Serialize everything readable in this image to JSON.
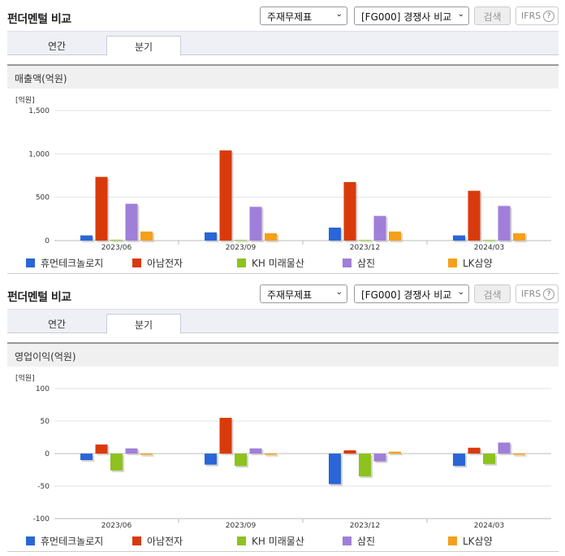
{
  "panels": [
    {
      "header": {
        "title": "펀더멘털 비교",
        "select_statement": "주재무제표",
        "select_compare": "[FG000] 경쟁사 비교",
        "search_label": "검색",
        "ifrs_label": "IFRS",
        "help_label": "?"
      },
      "tabs": [
        "연간",
        "분기"
      ],
      "active_tab": "분기",
      "subtitle": "매출액(억원)",
      "chart_data": {
        "type": "bar",
        "unit_label": "[억원]",
        "categories": [
          "2023/06",
          "2023/09",
          "2023/12",
          "2024/03"
        ],
        "ylim": [
          0,
          1500
        ],
        "yticks": [
          0,
          500,
          1000,
          1500
        ],
        "ytick_labels": [
          "0",
          "500",
          "1,000",
          "1,500"
        ],
        "grid": true,
        "legend_position": "bottom",
        "series": [
          {
            "name": "휴먼테크놀로지",
            "color": "#2a66d6",
            "values": [
              60,
              95,
              150,
              60
            ]
          },
          {
            "name": "아남전자",
            "color": "#d93a0c",
            "values": [
              735,
              1040,
              675,
              575
            ]
          },
          {
            "name": "KH 미래물산",
            "color": "#8dc21f",
            "values": [
              10,
              8,
              8,
              8
            ]
          },
          {
            "name": "삼진",
            "color": "#a07fd8",
            "values": [
              425,
              390,
              285,
              400
            ]
          },
          {
            "name": "LK삼양",
            "color": "#f5a01a",
            "values": [
              105,
              85,
              105,
              85
            ]
          }
        ]
      }
    },
    {
      "header": {
        "title": "펀더멘털 비교",
        "select_statement": "주재무제표",
        "select_compare": "[FG000] 경쟁사 비교",
        "search_label": "검색",
        "ifrs_label": "IFRS",
        "help_label": "?"
      },
      "tabs": [
        "연간",
        "분기"
      ],
      "active_tab": "분기",
      "subtitle": "영업이익(억원)",
      "chart_data": {
        "type": "bar",
        "unit_label": "[억원]",
        "categories": [
          "2023/06",
          "2023/09",
          "2023/12",
          "2024/03"
        ],
        "ylim": [
          -100,
          100
        ],
        "yticks": [
          -100,
          -50,
          0,
          50,
          100
        ],
        "ytick_labels": [
          "-100",
          "-50",
          "0",
          "50",
          "100"
        ],
        "grid": true,
        "legend_position": "bottom",
        "series": [
          {
            "name": "휴먼테크놀로지",
            "color": "#2a66d6",
            "values": [
              -10,
              -17,
              -47,
              -19
            ]
          },
          {
            "name": "아남전자",
            "color": "#d93a0c",
            "values": [
              14,
              55,
              5,
              9
            ]
          },
          {
            "name": "KH 미래물산",
            "color": "#8dc21f",
            "values": [
              -26,
              -19,
              -35,
              -16
            ]
          },
          {
            "name": "삼진",
            "color": "#a07fd8",
            "values": [
              8,
              8,
              -12,
              17
            ]
          },
          {
            "name": "LK삼양",
            "color": "#f5a01a",
            "values": [
              -2,
              -2,
              3,
              -2
            ]
          }
        ]
      }
    }
  ]
}
